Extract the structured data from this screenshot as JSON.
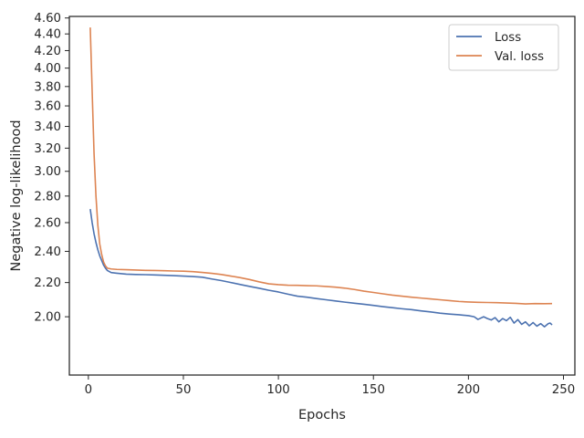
{
  "chart_data": {
    "type": "line",
    "title": "",
    "xlabel": "Epochs",
    "ylabel": "Negative log-likelihood",
    "yscale": "log",
    "xlim": [
      -10,
      256
    ],
    "ylim": [
      1.7,
      4.62
    ],
    "xticks": [
      0,
      50,
      100,
      150,
      200,
      250
    ],
    "yticks": [
      {
        "value": 2.0,
        "label": "2.00"
      },
      {
        "value": 2.2,
        "label": "2.20"
      },
      {
        "value": 2.4,
        "label": "2.40"
      },
      {
        "value": 2.6,
        "label": "2.60"
      },
      {
        "value": 2.8,
        "label": "2.80"
      },
      {
        "value": 3.0,
        "label": "3.00"
      },
      {
        "value": 3.2,
        "label": "3.20"
      },
      {
        "value": 3.4,
        "label": "3.40"
      },
      {
        "value": 3.6,
        "label": "3.60"
      },
      {
        "value": 3.8,
        "label": "3.80"
      },
      {
        "value": 4.0,
        "label": "4.00"
      },
      {
        "value": 4.2,
        "label": "4.20"
      },
      {
        "value": 4.4,
        "label": "4.40"
      },
      {
        "value": 4.6,
        "label": "4.60"
      }
    ],
    "grid": false,
    "legend": "top-right",
    "series": [
      {
        "name": "Loss",
        "color": "#4c72b0",
        "points": [
          [
            1,
            2.7
          ],
          [
            2,
            2.6
          ],
          [
            3,
            2.52
          ],
          [
            4,
            2.46
          ],
          [
            5,
            2.41
          ],
          [
            6,
            2.37
          ],
          [
            7,
            2.34
          ],
          [
            8,
            2.31
          ],
          [
            9,
            2.29
          ],
          [
            10,
            2.275
          ],
          [
            12,
            2.262
          ],
          [
            15,
            2.258
          ],
          [
            20,
            2.252
          ],
          [
            25,
            2.25
          ],
          [
            30,
            2.249
          ],
          [
            35,
            2.247
          ],
          [
            40,
            2.245
          ],
          [
            45,
            2.243
          ],
          [
            50,
            2.24
          ],
          [
            55,
            2.237
          ],
          [
            60,
            2.233
          ],
          [
            65,
            2.222
          ],
          [
            70,
            2.212
          ],
          [
            75,
            2.2
          ],
          [
            80,
            2.188
          ],
          [
            85,
            2.176
          ],
          [
            90,
            2.165
          ],
          [
            95,
            2.153
          ],
          [
            100,
            2.143
          ],
          [
            105,
            2.13
          ],
          [
            110,
            2.118
          ],
          [
            115,
            2.112
          ],
          [
            120,
            2.104
          ],
          [
            125,
            2.097
          ],
          [
            130,
            2.09
          ],
          [
            135,
            2.083
          ],
          [
            140,
            2.077
          ],
          [
            145,
            2.071
          ],
          [
            150,
            2.064
          ],
          [
            155,
            2.057
          ],
          [
            160,
            2.051
          ],
          [
            165,
            2.045
          ],
          [
            170,
            2.04
          ],
          [
            175,
            2.033
          ],
          [
            180,
            2.027
          ],
          [
            185,
            2.02
          ],
          [
            190,
            2.015
          ],
          [
            195,
            2.011
          ],
          [
            200,
            2.006
          ],
          [
            203,
            2.0
          ],
          [
            205,
            1.985
          ],
          [
            208,
            2.0
          ],
          [
            210,
            1.99
          ],
          [
            212,
            1.982
          ],
          [
            214,
            1.995
          ],
          [
            216,
            1.972
          ],
          [
            218,
            1.99
          ],
          [
            220,
            1.978
          ],
          [
            222,
            1.997
          ],
          [
            224,
            1.965
          ],
          [
            226,
            1.984
          ],
          [
            228,
            1.958
          ],
          [
            230,
            1.972
          ],
          [
            232,
            1.95
          ],
          [
            234,
            1.968
          ],
          [
            236,
            1.948
          ],
          [
            238,
            1.962
          ],
          [
            240,
            1.945
          ],
          [
            242,
            1.962
          ],
          [
            243,
            1.965
          ],
          [
            244,
            1.955
          ]
        ]
      },
      {
        "name": "Val. loss",
        "color": "#dd8452",
        "points": [
          [
            1,
            4.48
          ],
          [
            2,
            3.75
          ],
          [
            3,
            3.15
          ],
          [
            4,
            2.8
          ],
          [
            5,
            2.58
          ],
          [
            6,
            2.45
          ],
          [
            7,
            2.38
          ],
          [
            8,
            2.33
          ],
          [
            9,
            2.305
          ],
          [
            10,
            2.29
          ],
          [
            12,
            2.285
          ],
          [
            15,
            2.282
          ],
          [
            20,
            2.28
          ],
          [
            25,
            2.278
          ],
          [
            30,
            2.276
          ],
          [
            35,
            2.275
          ],
          [
            40,
            2.274
          ],
          [
            45,
            2.272
          ],
          [
            50,
            2.271
          ],
          [
            55,
            2.268
          ],
          [
            60,
            2.263
          ],
          [
            65,
            2.257
          ],
          [
            70,
            2.25
          ],
          [
            75,
            2.24
          ],
          [
            80,
            2.23
          ],
          [
            85,
            2.218
          ],
          [
            90,
            2.204
          ],
          [
            95,
            2.192
          ],
          [
            100,
            2.187
          ],
          [
            105,
            2.184
          ],
          [
            110,
            2.183
          ],
          [
            115,
            2.181
          ],
          [
            120,
            2.18
          ],
          [
            125,
            2.176
          ],
          [
            130,
            2.172
          ],
          [
            135,
            2.166
          ],
          [
            140,
            2.158
          ],
          [
            145,
            2.148
          ],
          [
            150,
            2.14
          ],
          [
            155,
            2.132
          ],
          [
            160,
            2.124
          ],
          [
            165,
            2.118
          ],
          [
            170,
            2.112
          ],
          [
            175,
            2.107
          ],
          [
            180,
            2.102
          ],
          [
            185,
            2.097
          ],
          [
            190,
            2.092
          ],
          [
            195,
            2.087
          ],
          [
            200,
            2.084
          ],
          [
            205,
            2.082
          ],
          [
            210,
            2.081
          ],
          [
            215,
            2.08
          ],
          [
            220,
            2.078
          ],
          [
            225,
            2.076
          ],
          [
            230,
            2.073
          ],
          [
            235,
            2.075
          ],
          [
            240,
            2.074
          ],
          [
            244,
            2.075
          ]
        ]
      }
    ]
  }
}
